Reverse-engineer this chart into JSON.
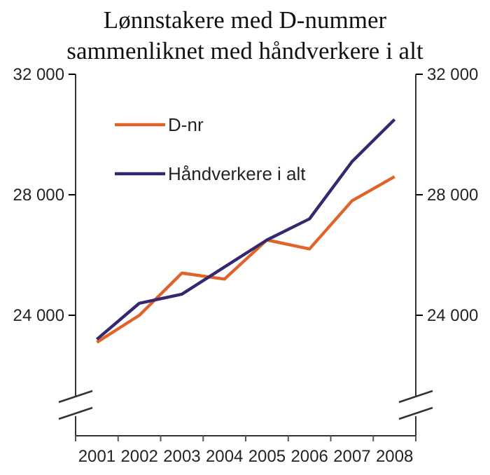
{
  "chart_data": {
    "type": "line",
    "title": "Lønnstakere med D-nummer sammenliknet med håndverkere i alt",
    "categories": [
      "2001",
      "2002",
      "2003",
      "2004",
      "2005",
      "2006",
      "2007",
      "2008"
    ],
    "series": [
      {
        "name": "D-nr",
        "color": "#e0632a",
        "values": [
          23100,
          24000,
          25400,
          25200,
          26500,
          26200,
          27800,
          28600
        ]
      },
      {
        "name": "Håndverkere i alt",
        "color": "#35286e",
        "values": [
          23200,
          24400,
          24700,
          25600,
          26500,
          27200,
          29100,
          30500
        ]
      }
    ],
    "ylim": [
      20000,
      32000
    ],
    "yticks": [
      {
        "value": 24000,
        "label": "24 000"
      },
      {
        "value": 28000,
        "label": "28 000"
      },
      {
        "value": 32000,
        "label": "32 000"
      }
    ],
    "y2lim": [
      20000,
      32000
    ],
    "y2ticks": [
      {
        "value": 24000,
        "label": "24 000"
      },
      {
        "value": 28000,
        "label": "28 000"
      },
      {
        "value": 32000,
        "label": "32 000"
      }
    ],
    "legend": "top left",
    "grid": false,
    "marker": "none",
    "line_style": "solid"
  }
}
